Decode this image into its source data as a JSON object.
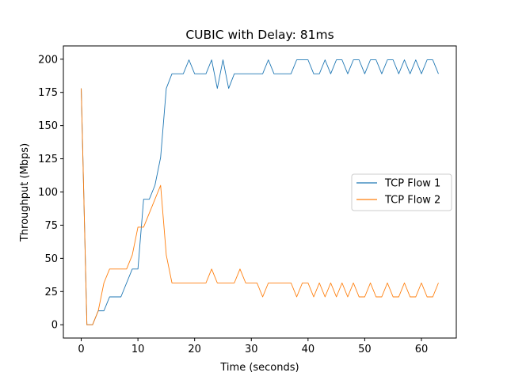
{
  "chart_data": {
    "type": "line",
    "title": "CUBIC with Delay: 81ms",
    "xlabel": "Time (seconds)",
    "ylabel": "Throughput (Mbps)",
    "xlim": [
      -3.15,
      66.15
    ],
    "ylim": [
      -10,
      210
    ],
    "xticks": [
      0,
      10,
      20,
      30,
      40,
      50,
      60
    ],
    "yticks": [
      0,
      25,
      50,
      75,
      100,
      125,
      150,
      175,
      200
    ],
    "legend_position": "center-right",
    "grid": false,
    "series": [
      {
        "name": "TCP Flow 1",
        "color": "#1f77b4",
        "x": [
          0,
          1,
          2,
          3,
          4,
          5,
          6,
          7,
          8,
          9,
          10,
          11,
          12,
          13,
          14,
          15,
          16,
          17,
          18,
          19,
          20,
          21,
          22,
          23,
          24,
          25,
          26,
          27,
          28,
          29,
          30,
          31,
          32,
          33,
          34,
          35,
          36,
          37,
          38,
          39,
          40,
          41,
          42,
          43,
          44,
          45,
          46,
          47,
          48,
          49,
          50,
          51,
          52,
          53,
          54,
          55,
          56,
          57,
          58,
          59,
          60,
          61,
          62,
          63
        ],
        "values": [
          178,
          0,
          0,
          10.5,
          10.5,
          21,
          21,
          21,
          31.5,
          42,
          42,
          94.5,
          94.5,
          105,
          126,
          178,
          189,
          189,
          189,
          199.5,
          189,
          189,
          189,
          199.5,
          178,
          199.5,
          178,
          189,
          189,
          189,
          189,
          189,
          189,
          199.5,
          189,
          189,
          189,
          189,
          199.5,
          199.5,
          199.5,
          189,
          189,
          199.5,
          189,
          199.5,
          199.5,
          189,
          199.5,
          199.5,
          189,
          199.5,
          199.5,
          189,
          199.5,
          199.5,
          189,
          199.5,
          189,
          199.5,
          189,
          199.5,
          199.5,
          189
        ]
      },
      {
        "name": "TCP Flow 2",
        "color": "#ff7f0e",
        "x": [
          0,
          1,
          2,
          3,
          4,
          5,
          6,
          7,
          8,
          9,
          10,
          11,
          12,
          13,
          14,
          15,
          16,
          17,
          18,
          19,
          20,
          21,
          22,
          23,
          24,
          25,
          26,
          27,
          28,
          29,
          30,
          31,
          32,
          33,
          34,
          35,
          36,
          37,
          38,
          39,
          40,
          41,
          42,
          43,
          44,
          45,
          46,
          47,
          48,
          49,
          50,
          51,
          52,
          53,
          54,
          55,
          56,
          57,
          58,
          59,
          60,
          61,
          62,
          63
        ],
        "values": [
          178,
          0,
          0,
          10.5,
          31.5,
          42,
          42,
          42,
          42,
          52.5,
          73.5,
          73.5,
          84,
          94.5,
          105,
          52.5,
          31.5,
          31.5,
          31.5,
          31.5,
          31.5,
          31.5,
          31.5,
          42,
          31.5,
          31.5,
          31.5,
          31.5,
          42,
          31.5,
          31.5,
          31.5,
          21,
          31.5,
          31.5,
          31.5,
          31.5,
          31.5,
          21,
          31.5,
          31.5,
          21,
          31.5,
          21,
          31.5,
          21,
          31.5,
          21,
          31.5,
          21,
          21,
          31.5,
          21,
          21,
          31.5,
          21,
          21,
          31.5,
          21,
          21,
          31.5,
          21,
          21,
          31.5
        ]
      }
    ]
  }
}
